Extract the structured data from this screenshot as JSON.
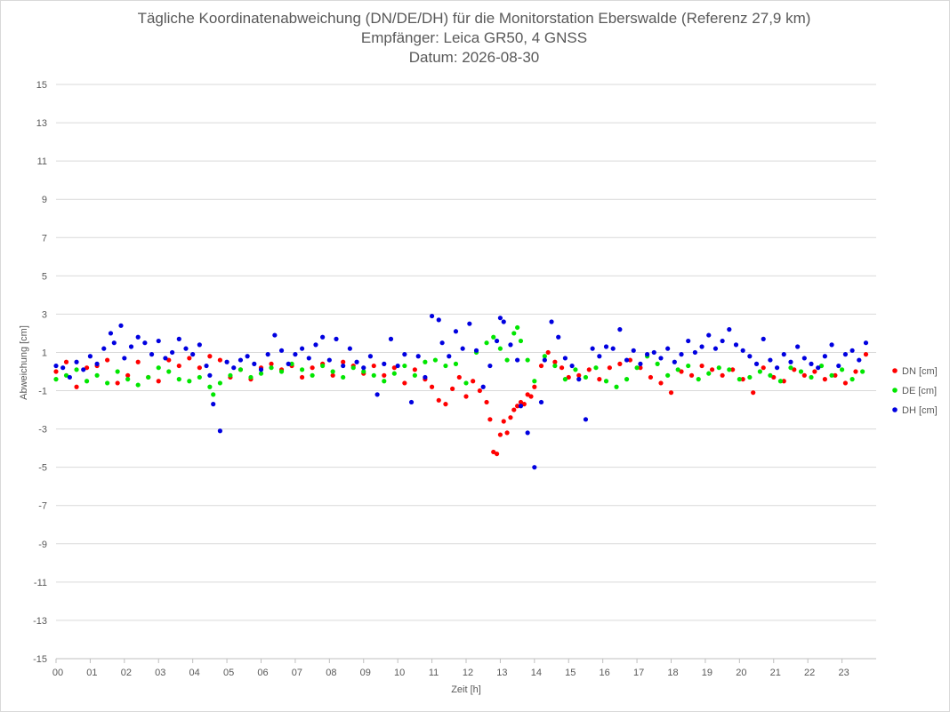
{
  "chart_data": {
    "type": "scatter",
    "title": "Tägliche Koordinatenabweichung (DN/DE/DH) für die Monitorstation Eberswalde (Referenz 27,9 km)",
    "subtitle": "Empfänger: Leica GR50, 4 GNSS",
    "date_line": "Datum: 2026-08-30",
    "xlabel": "Zeit [h]",
    "ylabel": "Abweichung [cm]",
    "xlim": [
      0,
      24
    ],
    "ylim": [
      -15,
      15
    ],
    "x_tick_labels": [
      "00",
      "01",
      "02",
      "03",
      "04",
      "05",
      "06",
      "07",
      "08",
      "09",
      "10",
      "11",
      "12",
      "13",
      "14",
      "15",
      "16",
      "17",
      "18",
      "19",
      "20",
      "21",
      "22",
      "23"
    ],
    "y_tick_labels": [
      "15",
      "13",
      "11",
      "9",
      "7",
      "5",
      "3",
      "1",
      "-1",
      "-3",
      "-5",
      "-7",
      "-9",
      "-11",
      "-13",
      "-15"
    ],
    "grid": "horizontal",
    "legend_position": "right",
    "series": [
      {
        "name": "DN [cm]",
        "color": "#ff0000",
        "x": [
          0.0,
          0.3,
          0.6,
          0.9,
          1.2,
          1.5,
          1.8,
          2.1,
          2.4,
          2.7,
          3.0,
          3.3,
          3.6,
          3.9,
          4.2,
          4.5,
          4.8,
          5.1,
          5.4,
          5.7,
          6.0,
          6.3,
          6.6,
          6.9,
          7.2,
          7.5,
          7.8,
          8.1,
          8.4,
          8.7,
          9.0,
          9.3,
          9.6,
          9.9,
          10.2,
          10.5,
          10.8,
          11.0,
          11.2,
          11.4,
          11.6,
          11.8,
          12.0,
          12.2,
          12.4,
          12.6,
          12.7,
          12.8,
          12.9,
          13.0,
          13.1,
          13.2,
          13.3,
          13.4,
          13.5,
          13.6,
          13.7,
          13.8,
          13.9,
          14.0,
          14.2,
          14.4,
          14.6,
          14.8,
          15.0,
          15.3,
          15.6,
          15.9,
          16.2,
          16.5,
          16.8,
          17.1,
          17.4,
          17.7,
          18.0,
          18.3,
          18.6,
          18.9,
          19.2,
          19.5,
          19.8,
          20.1,
          20.4,
          20.7,
          21.0,
          21.3,
          21.6,
          21.9,
          22.2,
          22.5,
          22.8,
          23.1,
          23.4,
          23.7
        ],
        "y": [
          0.0,
          0.5,
          -0.8,
          0.2,
          0.3,
          0.6,
          -0.6,
          -0.2,
          0.5,
          -0.3,
          -0.5,
          0.6,
          0.3,
          0.7,
          0.2,
          0.8,
          0.6,
          -0.3,
          0.1,
          -0.4,
          0.2,
          0.4,
          0.1,
          0.3,
          -0.3,
          0.2,
          0.4,
          -0.2,
          0.5,
          0.3,
          -0.1,
          0.3,
          -0.2,
          0.2,
          -0.6,
          0.1,
          -0.4,
          -0.8,
          -1.5,
          -1.7,
          -0.9,
          -0.3,
          -1.3,
          -0.5,
          -1.0,
          -1.6,
          -2.5,
          -4.2,
          -4.3,
          -3.3,
          -2.6,
          -3.2,
          -2.4,
          -2.0,
          -1.8,
          -1.6,
          -1.7,
          -1.2,
          -1.3,
          -0.8,
          0.3,
          1.0,
          0.5,
          0.2,
          -0.3,
          -0.2,
          0.1,
          -0.4,
          0.2,
          0.4,
          0.6,
          0.2,
          -0.3,
          -0.6,
          -1.1,
          0.0,
          -0.2,
          0.3,
          0.1,
          -0.2,
          0.1,
          -0.4,
          -1.1,
          0.2,
          -0.3,
          -0.5,
          0.1,
          -0.2,
          0.0,
          -0.4,
          -0.2,
          -0.6,
          0.0,
          0.9
        ]
      },
      {
        "name": "DE [cm]",
        "color": "#00e600",
        "x": [
          0.0,
          0.3,
          0.6,
          0.9,
          1.2,
          1.5,
          1.8,
          2.1,
          2.4,
          2.7,
          3.0,
          3.3,
          3.6,
          3.9,
          4.2,
          4.5,
          4.6,
          4.8,
          5.1,
          5.4,
          5.7,
          6.0,
          6.3,
          6.6,
          6.9,
          7.2,
          7.5,
          7.8,
          8.1,
          8.4,
          8.7,
          9.0,
          9.3,
          9.6,
          9.9,
          10.2,
          10.5,
          10.8,
          11.1,
          11.4,
          11.7,
          12.0,
          12.3,
          12.6,
          12.8,
          13.0,
          13.2,
          13.4,
          13.5,
          13.6,
          13.8,
          14.0,
          14.3,
          14.6,
          14.9,
          15.2,
          15.5,
          15.8,
          16.1,
          16.4,
          16.7,
          17.0,
          17.3,
          17.6,
          17.9,
          18.2,
          18.5,
          18.8,
          19.1,
          19.4,
          19.7,
          20.0,
          20.3,
          20.6,
          20.9,
          21.2,
          21.5,
          21.8,
          22.1,
          22.4,
          22.7,
          23.0,
          23.3,
          23.6
        ],
        "y": [
          -0.4,
          -0.2,
          0.1,
          -0.5,
          -0.2,
          -0.6,
          0.0,
          -0.4,
          -0.7,
          -0.3,
          0.2,
          0.0,
          -0.4,
          -0.5,
          -0.3,
          -0.8,
          -1.2,
          -0.6,
          -0.2,
          0.1,
          -0.3,
          -0.1,
          0.2,
          0.0,
          0.4,
          0.1,
          -0.2,
          0.3,
          0.0,
          -0.3,
          0.2,
          0.0,
          -0.2,
          -0.5,
          -0.1,
          0.3,
          -0.2,
          0.5,
          0.6,
          0.3,
          0.4,
          -0.6,
          1.0,
          1.5,
          1.8,
          1.2,
          0.6,
          2.0,
          2.3,
          1.6,
          0.6,
          -0.5,
          0.8,
          0.3,
          -0.4,
          0.1,
          -0.3,
          0.2,
          -0.5,
          -0.8,
          -0.4,
          0.2,
          0.8,
          0.4,
          -0.2,
          0.1,
          0.3,
          -0.4,
          -0.1,
          0.2,
          0.1,
          -0.4,
          -0.3,
          0.0,
          -0.2,
          -0.5,
          0.2,
          0.0,
          -0.3,
          0.3,
          -0.2,
          0.1,
          -0.4,
          0.0
        ]
      },
      {
        "name": "DH [cm]",
        "color": "#0000e0",
        "x": [
          0.0,
          0.2,
          0.4,
          0.6,
          0.8,
          1.0,
          1.2,
          1.4,
          1.6,
          1.7,
          1.9,
          2.0,
          2.2,
          2.4,
          2.6,
          2.8,
          3.0,
          3.2,
          3.4,
          3.6,
          3.8,
          4.0,
          4.2,
          4.4,
          4.5,
          4.6,
          4.8,
          5.0,
          5.2,
          5.4,
          5.6,
          5.8,
          6.0,
          6.2,
          6.4,
          6.6,
          6.8,
          7.0,
          7.2,
          7.4,
          7.6,
          7.8,
          8.0,
          8.2,
          8.4,
          8.6,
          8.8,
          9.0,
          9.2,
          9.4,
          9.6,
          9.8,
          10.0,
          10.2,
          10.4,
          10.6,
          10.8,
          11.0,
          11.2,
          11.3,
          11.5,
          11.7,
          11.9,
          12.1,
          12.3,
          12.5,
          12.7,
          12.9,
          13.0,
          13.1,
          13.3,
          13.5,
          13.6,
          13.8,
          14.0,
          14.2,
          14.3,
          14.5,
          14.7,
          14.9,
          15.1,
          15.3,
          15.5,
          15.7,
          15.9,
          16.1,
          16.3,
          16.5,
          16.7,
          16.9,
          17.1,
          17.3,
          17.5,
          17.7,
          17.9,
          18.1,
          18.3,
          18.5,
          18.7,
          18.9,
          19.1,
          19.3,
          19.5,
          19.7,
          19.9,
          20.1,
          20.3,
          20.5,
          20.7,
          20.9,
          21.1,
          21.3,
          21.5,
          21.7,
          21.9,
          22.1,
          22.3,
          22.5,
          22.7,
          22.9,
          23.1,
          23.3,
          23.5,
          23.7
        ],
        "y": [
          0.3,
          0.2,
          -0.3,
          0.5,
          0.1,
          0.8,
          0.4,
          1.2,
          2.0,
          1.5,
          2.4,
          0.7,
          1.3,
          1.8,
          1.5,
          0.9,
          1.6,
          0.7,
          1.0,
          1.7,
          1.2,
          0.9,
          1.4,
          0.3,
          -0.2,
          -1.7,
          -3.1,
          0.5,
          0.2,
          0.6,
          0.8,
          0.4,
          0.1,
          0.9,
          1.9,
          1.1,
          0.4,
          0.9,
          1.2,
          0.7,
          1.4,
          1.8,
          0.6,
          1.7,
          0.3,
          1.2,
          0.5,
          0.2,
          0.8,
          -1.2,
          0.4,
          1.7,
          0.3,
          0.9,
          -1.6,
          0.8,
          -0.3,
          2.9,
          2.7,
          1.5,
          0.8,
          2.1,
          1.2,
          2.5,
          1.1,
          -0.8,
          0.3,
          1.6,
          2.8,
          2.6,
          1.4,
          0.6,
          -1.8,
          -3.2,
          -5.0,
          -1.6,
          0.6,
          2.6,
          1.8,
          0.7,
          0.3,
          -0.4,
          -2.5,
          1.2,
          0.8,
          1.3,
          1.2,
          2.2,
          0.6,
          1.1,
          0.4,
          0.9,
          1.0,
          0.7,
          1.2,
          0.5,
          0.9,
          1.6,
          1.0,
          1.3,
          1.9,
          1.2,
          1.6,
          2.2,
          1.4,
          1.1,
          0.8,
          0.4,
          1.7,
          0.6,
          0.2,
          0.9,
          0.5,
          1.3,
          0.7,
          0.4,
          0.2,
          0.8,
          1.4,
          0.3,
          0.9,
          1.1,
          0.6,
          1.5
        ]
      }
    ]
  }
}
